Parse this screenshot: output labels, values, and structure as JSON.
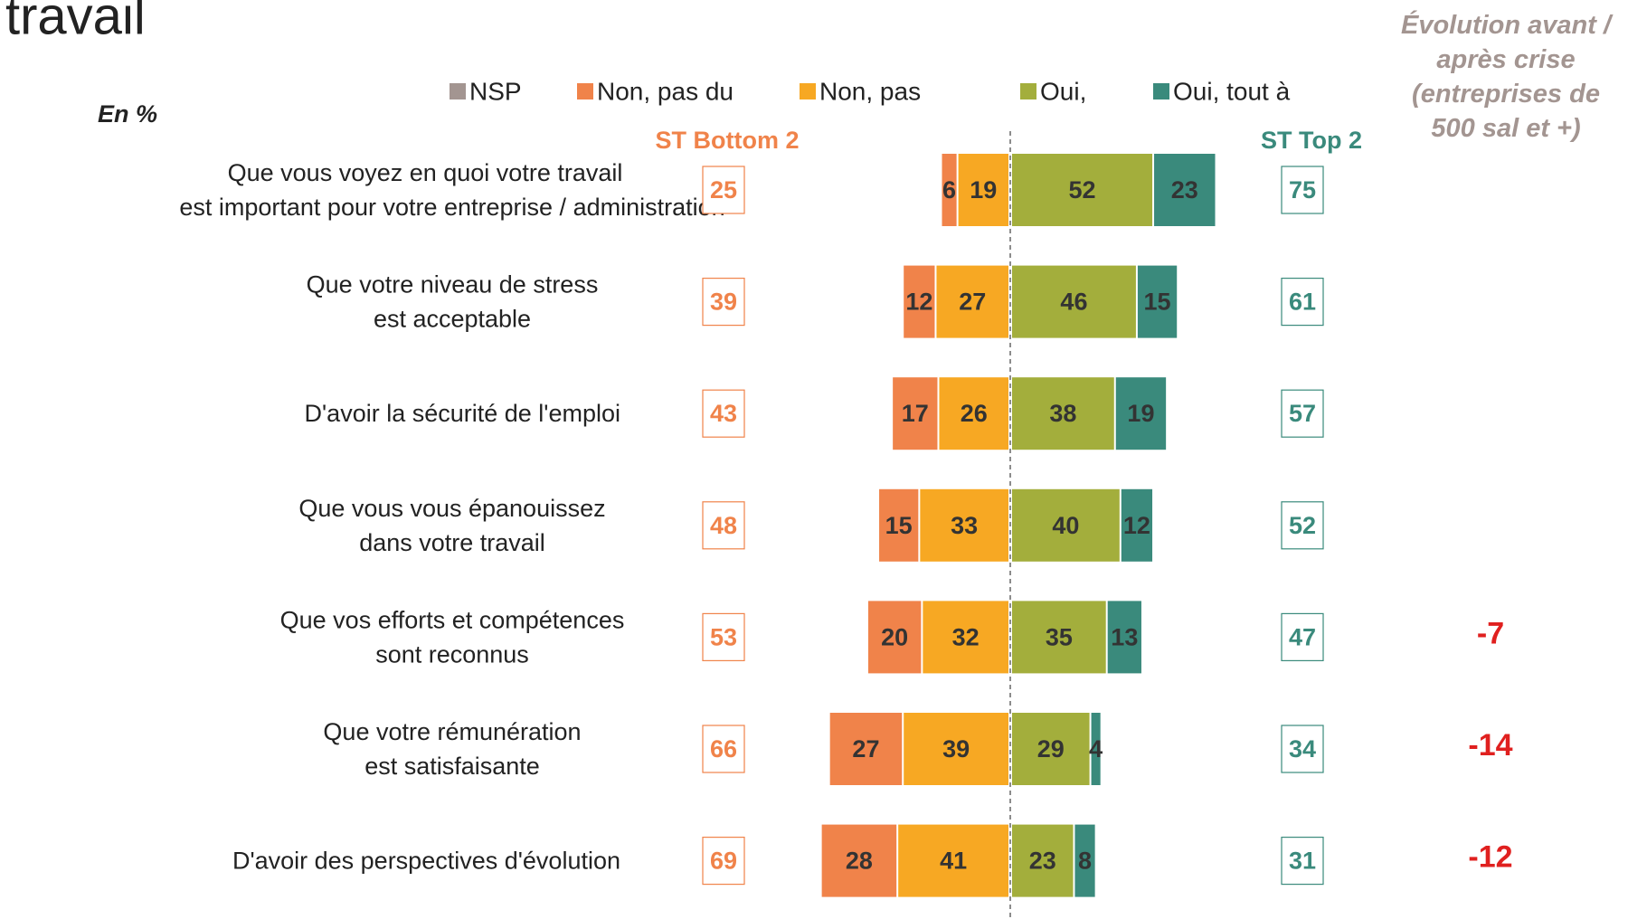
{
  "chart_data": {
    "type": "diverging-bar",
    "title": "travail",
    "subtitle": "En %",
    "bottom_header": "ST Bottom 2",
    "top_header": "ST Top 2",
    "evolution_header": [
      "Évolution avant /",
      "après crise",
      "(entreprises de",
      "500 sal et +)"
    ],
    "categories": [
      [
        "Que vous voyez en quoi votre travail",
        "est important pour votre entreprise / administration"
      ],
      [
        "Que votre niveau de stress",
        "est acceptable"
      ],
      [
        "D'avoir la sécurité de l'emploi"
      ],
      [
        "Que vous vous épanouissez",
        "dans votre travail"
      ],
      [
        "Que vos efforts et compétences",
        "sont reconnus"
      ],
      [
        "Que votre rémunération",
        "est satisfaisante"
      ],
      [
        "D'avoir des perspectives d'évolution"
      ]
    ],
    "series": [
      {
        "name": "NSP",
        "color": "#a39591",
        "values": [
          null,
          null,
          null,
          null,
          null,
          null,
          null
        ]
      },
      {
        "name": "Non, pas du",
        "color": "#f0834a",
        "values": [
          6,
          12,
          17,
          15,
          20,
          27,
          28
        ]
      },
      {
        "name": "Non, pas",
        "color": "#f7a823",
        "values": [
          19,
          27,
          26,
          33,
          32,
          39,
          41
        ]
      },
      {
        "name": "Oui,",
        "color": "#a3ae3c",
        "values": [
          52,
          46,
          38,
          40,
          35,
          29,
          23
        ]
      },
      {
        "name": "Oui, tout à",
        "color": "#3a8a7c",
        "values": [
          23,
          15,
          19,
          12,
          13,
          4,
          8
        ]
      }
    ],
    "bottom2": {
      "color": "#f0834a",
      "values": [
        25,
        39,
        43,
        48,
        53,
        66,
        69
      ]
    },
    "top2": {
      "color": "#3a8a7c",
      "values": [
        75,
        61,
        57,
        52,
        47,
        34,
        31
      ]
    },
    "evolution": {
      "color": "#e0201f",
      "values": [
        null,
        null,
        null,
        null,
        -7,
        -14,
        -12
      ]
    }
  }
}
